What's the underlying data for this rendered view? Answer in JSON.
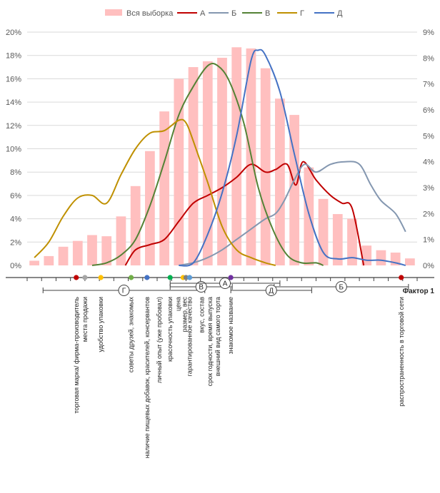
{
  "chart_data": {
    "type": "bar+line",
    "title": "",
    "left_axis": {
      "min": 0,
      "max": 20,
      "step": 2,
      "tick_labels": [
        "0%",
        "2%",
        "4%",
        "6%",
        "8%",
        "10%",
        "12%",
        "14%",
        "16%",
        "18%",
        "20%"
      ]
    },
    "right_axis": {
      "min": 0,
      "max": 9,
      "step": 1,
      "tick_labels": [
        "0%",
        "1%",
        "2%",
        "3%",
        "4%",
        "5%",
        "6%",
        "7%",
        "8%",
        "9%"
      ]
    },
    "legend_position": "top",
    "legend": [
      {
        "label": "Вся выборка",
        "kind": "bar",
        "color": "#ffbfbf"
      },
      {
        "label": "А",
        "kind": "line",
        "color": "#c00000"
      },
      {
        "label": "Б",
        "kind": "line",
        "color": "#8497b0"
      },
      {
        "label": "В",
        "kind": "line",
        "color": "#548235"
      },
      {
        "label": "Г",
        "kind": "line",
        "color": "#bf9000"
      },
      {
        "label": "Д",
        "kind": "line",
        "color": "#4472c4"
      }
    ],
    "bars": {
      "name": "Вся выборка",
      "axis": "left",
      "color": "#ffbfbf",
      "values": [
        0.4,
        0.8,
        1.6,
        2.1,
        2.6,
        2.5,
        4.2,
        6.8,
        9.8,
        13.2,
        16.0,
        17.0,
        17.5,
        17.8,
        18.7,
        18.6,
        16.9,
        14.3,
        12.9,
        8.4,
        5.7,
        4.4,
        4.0,
        1.7,
        1.3,
        1.1,
        0.6
      ]
    },
    "series": [
      {
        "name": "А",
        "axis": "right",
        "color": "#c00000",
        "x": [
          6.3,
          7.0,
          8.0,
          9.0,
          10.0,
          11.0,
          12.0,
          13.0,
          14.0,
          15.0,
          16.0,
          16.7,
          17.5,
          18.1,
          18.6,
          19.5,
          20.5,
          21.3,
          22.0,
          22.8
        ],
        "y": [
          0,
          0.6,
          0.8,
          1.0,
          1.7,
          2.4,
          2.7,
          3.0,
          3.4,
          3.9,
          3.6,
          3.7,
          3.9,
          3.1,
          4.0,
          3.3,
          2.7,
          2.4,
          2.2,
          0
        ]
      },
      {
        "name": "Б",
        "axis": "right",
        "color": "#8497b0",
        "x": [
          10.0,
          11.0,
          12.0,
          13.0,
          14.0,
          15.0,
          16.0,
          16.7,
          17.3,
          18.0,
          18.7,
          19.5,
          20.5,
          21.5,
          22.5,
          23.3,
          24.0,
          25.0,
          25.7
        ],
        "y": [
          0,
          0.1,
          0.3,
          0.6,
          1.0,
          1.4,
          1.8,
          2.0,
          2.5,
          3.3,
          3.9,
          3.6,
          3.9,
          4.0,
          3.9,
          3.1,
          2.5,
          2.0,
          1.3
        ]
      },
      {
        "name": "В",
        "axis": "right",
        "color": "#548235",
        "x": [
          4.0,
          5.0,
          6.0,
          7.0,
          8.0,
          9.0,
          10.0,
          11.0,
          12.0,
          12.7,
          13.5,
          14.5,
          15.5,
          16.5,
          17.5,
          18.5,
          19.5,
          20.0
        ],
        "y": [
          0,
          0.1,
          0.4,
          1.0,
          2.3,
          4.0,
          5.8,
          6.9,
          7.7,
          7.7,
          7.1,
          5.5,
          3.0,
          1.4,
          0.4,
          0.1,
          0.1,
          0
        ]
      },
      {
        "name": "Г",
        "axis": "right",
        "color": "#bf9000",
        "x": [
          0,
          1.0,
          2.0,
          3.0,
          4.0,
          5.0,
          6.0,
          7.0,
          8.0,
          9.0,
          10.0,
          10.5,
          11.0,
          12.0,
          13.0,
          14.0,
          15.0,
          16.0,
          16.7
        ],
        "y": [
          0.3,
          0.9,
          1.9,
          2.6,
          2.7,
          2.4,
          3.5,
          4.5,
          5.1,
          5.2,
          5.6,
          5.5,
          4.8,
          3.2,
          1.5,
          0.6,
          0.3,
          0.1,
          0
        ]
      },
      {
        "name": "Д",
        "axis": "right",
        "color": "#4472c4",
        "x": [
          10.0,
          11.0,
          12.0,
          13.0,
          14.0,
          15.0,
          15.5,
          16.0,
          17.0,
          18.0,
          19.0,
          20.0,
          21.0,
          22.0,
          23.0,
          24.0,
          25.0,
          25.7
        ],
        "y": [
          0,
          0.1,
          1.2,
          2.8,
          5.0,
          7.9,
          8.3,
          8.1,
          6.7,
          4.3,
          2.0,
          0.5,
          0.25,
          0.3,
          0.2,
          0.2,
          0.1,
          0
        ]
      }
    ],
    "factor_axis": {
      "label": "Фактор 1",
      "markers": [
        {
          "pos": 2.9,
          "color": "#c00000"
        },
        {
          "pos": 3.5,
          "color": "#a6a6a6"
        },
        {
          "pos": 4.6,
          "color": "#ffc000"
        },
        {
          "pos": 6.7,
          "color": "#70ad47"
        },
        {
          "pos": 7.8,
          "color": "#4472c4"
        },
        {
          "pos": 9.4,
          "color": "#00b050"
        },
        {
          "pos": 10.3,
          "color": "#ffc000"
        },
        {
          "pos": 10.5,
          "color": "#7f7f7f"
        },
        {
          "pos": 10.75,
          "color": "#5b9bd5"
        },
        {
          "pos": 13.6,
          "color": "#7030a0"
        },
        {
          "pos": 25.4,
          "color": "#c00000"
        }
      ],
      "ranges": [
        {
          "label": "Г",
          "from": 0.6,
          "to": 11.8,
          "row": 1
        },
        {
          "label": "В",
          "from": 9.4,
          "to": 13.7,
          "row": 0
        },
        {
          "label": "А",
          "from": 9.4,
          "to": 17.0,
          "row": -1
        },
        {
          "label": "Б",
          "from": 16.6,
          "to": 25.9,
          "row": 0
        },
        {
          "label": "Д",
          "from": 13.6,
          "to": 19.2,
          "row": 1
        }
      ],
      "item_labels": [
        {
          "pos": 2.9,
          "text": "торговая марка/ фирма-производитель"
        },
        {
          "pos": 3.5,
          "text": "места продажи"
        },
        {
          "pos": 4.6,
          "text": "удобство упаковки"
        },
        {
          "pos": 6.7,
          "text": "советы друзей, знакомых"
        },
        {
          "pos": 7.8,
          "text": "наличие пищевых добавок, красителей, консервантов"
        },
        {
          "pos": 8.65,
          "text": "личный опыт (уже пробовал)"
        },
        {
          "pos": 9.4,
          "text": "красочность упаковки"
        },
        {
          "pos": 9.95,
          "text": "цена"
        },
        {
          "pos": 10.4,
          "text": "размер, вес"
        },
        {
          "pos": 10.75,
          "text": "гарантированное качество"
        },
        {
          "pos": 11.6,
          "text": "вкус, состав"
        },
        {
          "pos": 12.15,
          "text": "срок годности, время выпуска"
        },
        {
          "pos": 12.7,
          "text": "внешний вид самого торта"
        },
        {
          "pos": 13.6,
          "text": "знакомое название"
        },
        {
          "pos": 25.4,
          "text": "распространенность в торговой сети"
        }
      ]
    }
  }
}
